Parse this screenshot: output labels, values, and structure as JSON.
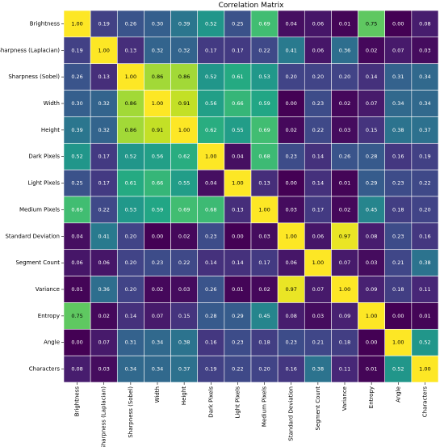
{
  "chart_data": {
    "type": "heatmap",
    "title": "Correlation Matrix",
    "colormap": "viridis",
    "value_range": [
      0,
      1
    ],
    "categories": [
      "Brightness",
      "Sharpness (Laplacian)",
      "Sharpness (Sobel)",
      "Width",
      "Height",
      "Dark Pixels",
      "Light Pixels",
      "Medium Pixels",
      "Standard Deviation",
      "Segment Count",
      "Variance",
      "Entropy",
      "Angle",
      "Characters"
    ],
    "values": [
      [
        1.0,
        0.19,
        0.26,
        0.3,
        0.39,
        0.52,
        0.25,
        0.69,
        0.04,
        0.06,
        0.01,
        0.75,
        0.0,
        0.08
      ],
      [
        0.19,
        1.0,
        0.13,
        0.32,
        0.32,
        0.17,
        0.17,
        0.22,
        0.41,
        0.06,
        0.36,
        0.02,
        0.07,
        0.03
      ],
      [
        0.26,
        0.13,
        1.0,
        0.86,
        0.86,
        0.52,
        0.61,
        0.53,
        0.2,
        0.2,
        0.2,
        0.14,
        0.31,
        0.34
      ],
      [
        0.3,
        0.32,
        0.86,
        1.0,
        0.91,
        0.56,
        0.66,
        0.59,
        0.0,
        0.23,
        0.02,
        0.07,
        0.34,
        0.34
      ],
      [
        0.39,
        0.32,
        0.86,
        0.91,
        1.0,
        0.62,
        0.55,
        0.69,
        0.02,
        0.22,
        0.03,
        0.15,
        0.38,
        0.37
      ],
      [
        0.52,
        0.17,
        0.52,
        0.56,
        0.62,
        1.0,
        0.04,
        0.68,
        0.23,
        0.14,
        0.26,
        0.28,
        0.16,
        0.19
      ],
      [
        0.25,
        0.17,
        0.61,
        0.66,
        0.55,
        0.04,
        1.0,
        0.13,
        0.0,
        0.14,
        0.01,
        0.29,
        0.23,
        0.22
      ],
      [
        0.69,
        0.22,
        0.53,
        0.59,
        0.69,
        0.68,
        0.13,
        1.0,
        0.03,
        0.17,
        0.02,
        0.45,
        0.18,
        0.2
      ],
      [
        0.04,
        0.41,
        0.2,
        0.0,
        0.02,
        0.23,
        0.0,
        0.03,
        1.0,
        0.06,
        0.97,
        0.08,
        0.23,
        0.16
      ],
      [
        0.06,
        0.06,
        0.2,
        0.23,
        0.22,
        0.14,
        0.14,
        0.17,
        0.06,
        1.0,
        0.07,
        0.03,
        0.21,
        0.38
      ],
      [
        0.01,
        0.36,
        0.2,
        0.02,
        0.03,
        0.26,
        0.01,
        0.02,
        0.97,
        0.07,
        1.0,
        0.09,
        0.18,
        0.11
      ],
      [
        0.75,
        0.02,
        0.14,
        0.07,
        0.15,
        0.28,
        0.29,
        0.45,
        0.08,
        0.03,
        0.09,
        1.0,
        0.0,
        0.01
      ],
      [
        0.0,
        0.07,
        0.31,
        0.34,
        0.38,
        0.16,
        0.23,
        0.18,
        0.23,
        0.21,
        0.18,
        0.0,
        1.0,
        0.52
      ],
      [
        0.08,
        0.03,
        0.34,
        0.34,
        0.37,
        0.19,
        0.22,
        0.2,
        0.16,
        0.38,
        0.11,
        0.01,
        0.52,
        1.0
      ]
    ]
  }
}
